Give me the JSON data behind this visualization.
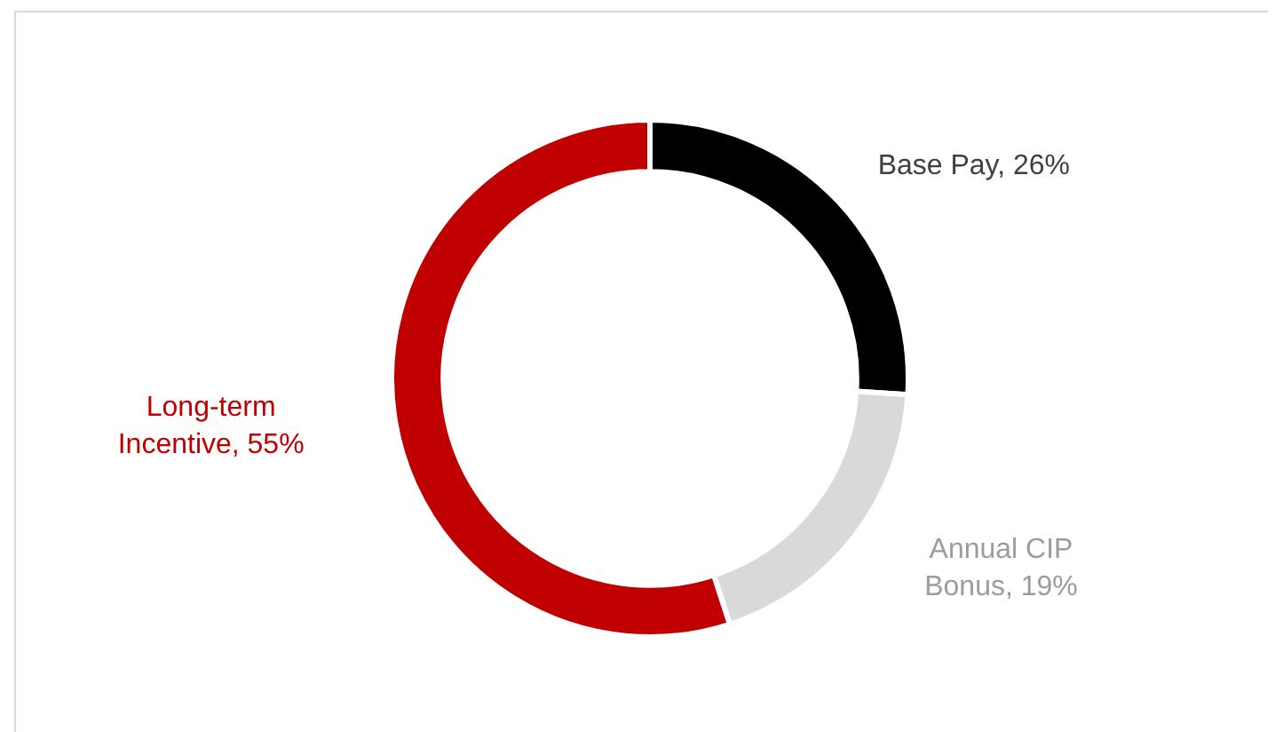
{
  "chart_data": {
    "type": "donut",
    "categories": [
      "Base Pay",
      "Annual CIP Bonus",
      "Long-term Incentive"
    ],
    "values": [
      26,
      19,
      55
    ],
    "colors": [
      "#000000",
      "#d9d9d9",
      "#c00000"
    ],
    "value_labels": [
      "26%",
      "19%",
      "55%"
    ],
    "legend": false
  }
}
